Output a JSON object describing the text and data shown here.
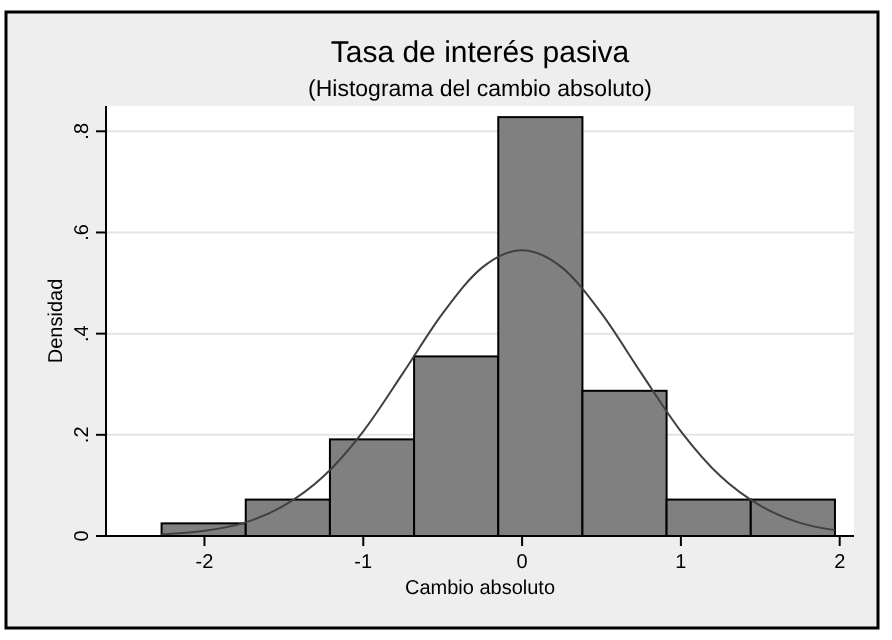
{
  "chart_data": {
    "type": "histogram",
    "title": "Tasa de interés pasiva",
    "subtitle": "(Histograma del cambio absoluto)",
    "xlabel": "Cambio absoluto",
    "ylabel": "Densidad",
    "bins": [
      -2.27,
      -1.74,
      -1.21,
      -0.68,
      -0.15,
      0.38,
      0.91,
      1.44,
      1.97
    ],
    "values": [
      0.025,
      0.072,
      0.191,
      0.355,
      0.828,
      0.287,
      0.072,
      0.072
    ],
    "color": "#808080",
    "series": [
      {
        "type": "line",
        "color": "#404040",
        "x": [
          -2.27,
          -2,
          -1.75,
          -1.5,
          -1.25,
          -1,
          -0.75,
          -0.5,
          -0.25,
          0,
          0.25,
          0.5,
          0.75,
          1,
          1.25,
          1.5,
          1.75,
          1.97
        ],
        "values": [
          0.0032,
          0.0102,
          0.026,
          0.06,
          0.118,
          0.207,
          0.322,
          0.44,
          0.531,
          0.565,
          0.531,
          0.44,
          0.322,
          0.207,
          0.118,
          0.06,
          0.026,
          0.0116
        ]
      }
    ],
    "xlim": [
      -2.62,
      2.09
    ],
    "ylim": [
      0,
      0.85
    ],
    "xticks": [
      -2,
      -1,
      0,
      1,
      2
    ],
    "yticks": [
      0,
      {
        "value": 0.2,
        "label": ".2"
      },
      {
        "value": 0.4,
        "label": ".4"
      },
      {
        "value": 0.6,
        "label": ".6"
      },
      {
        "value": 0.8,
        "label": ".8"
      }
    ],
    "grid": "y",
    "marker": "none",
    "line_style": "solid"
  }
}
